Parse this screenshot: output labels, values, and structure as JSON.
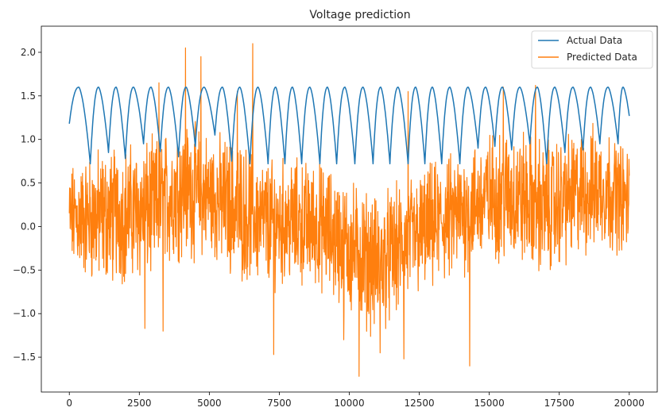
{
  "chart_data": {
    "type": "line",
    "title": "Voltage prediction",
    "xlabel": "",
    "ylabel": "",
    "xlim": [
      -1000,
      21000
    ],
    "ylim": [
      -1.9,
      2.3
    ],
    "xticks": [
      0,
      2500,
      5000,
      7500,
      10000,
      12500,
      15000,
      17500,
      20000
    ],
    "xtick_labels": [
      "0",
      "2500",
      "5000",
      "7500",
      "10000",
      "12500",
      "15000",
      "17500",
      "20000"
    ],
    "yticks": [
      -1.5,
      -1.0,
      -0.5,
      0.0,
      0.5,
      1.0,
      1.5,
      2.0
    ],
    "ytick_labels": [
      "−1.5",
      "−1.0",
      "−0.5",
      "0.0",
      "0.5",
      "1.0",
      "1.5",
      "2.0"
    ],
    "grid": false,
    "legend_position": "top-right",
    "series": [
      {
        "name": "Actual Data",
        "color": "#1f77b4",
        "x_start": 0,
        "x_end": 20000,
        "cycle_starts": [
          0,
          750,
          1400,
          2000,
          2650,
          3250,
          3900,
          4500,
          5200,
          5800,
          6450,
          7100,
          7700,
          8300,
          8950,
          9550,
          10200,
          10850,
          11450,
          12100,
          12700,
          13300,
          13950,
          14600,
          15200,
          15800,
          16450,
          17050,
          17700,
          18350,
          18950,
          19600,
          20000
        ],
        "cycle_minima": [
          1.18,
          0.72,
          0.85,
          0.78,
          0.95,
          0.86,
          0.8,
          0.92,
          1.05,
          0.75,
          0.72,
          0.72,
          0.72,
          0.72,
          0.72,
          0.72,
          0.72,
          0.72,
          0.72,
          0.72,
          0.72,
          0.72,
          0.72,
          0.9,
          0.92,
          0.88,
          0.95,
          0.72,
          0.85,
          0.88,
          0.95,
          0.95,
          1.27
        ],
        "cycle_max": 1.6
      },
      {
        "name": "Predicted Data",
        "color": "#ff7f0e",
        "x_start": 0,
        "x_end": 20000,
        "n_points": 2000,
        "envelope_x": [
          0,
          1000,
          2000,
          3000,
          4000,
          5000,
          6000,
          7000,
          8000,
          9000,
          10000,
          11000,
          12000,
          13000,
          14000,
          15000,
          16000,
          17000,
          18000,
          19000,
          20000
        ],
        "envelope_mean": [
          0.1,
          0.1,
          0.15,
          0.2,
          0.45,
          0.35,
          0.2,
          0.05,
          0.05,
          0.0,
          -0.25,
          -0.45,
          -0.2,
          0.0,
          0.15,
          0.35,
          0.35,
          0.2,
          0.35,
          0.45,
          0.3
        ],
        "envelope_amplitude": [
          0.45,
          0.6,
          0.6,
          0.6,
          0.6,
          0.55,
          0.6,
          0.55,
          0.55,
          0.55,
          0.6,
          0.6,
          0.55,
          0.55,
          0.55,
          0.55,
          0.6,
          0.6,
          0.55,
          0.55,
          0.45
        ],
        "peaks": [
          [
            4150,
            2.05
          ],
          [
            6550,
            2.1
          ],
          [
            4700,
            1.95
          ],
          [
            6000,
            1.55
          ],
          [
            16650,
            1.62
          ],
          [
            3200,
            1.65
          ],
          [
            15500,
            1.6
          ],
          [
            12100,
            1.55
          ]
        ],
        "troughs": [
          [
            10350,
            -1.72
          ],
          [
            14300,
            -1.6
          ],
          [
            11950,
            -1.52
          ],
          [
            7300,
            -1.47
          ],
          [
            3350,
            -1.2
          ],
          [
            2700,
            -1.17
          ],
          [
            11100,
            -1.45
          ],
          [
            9800,
            -1.3
          ]
        ]
      }
    ]
  }
}
